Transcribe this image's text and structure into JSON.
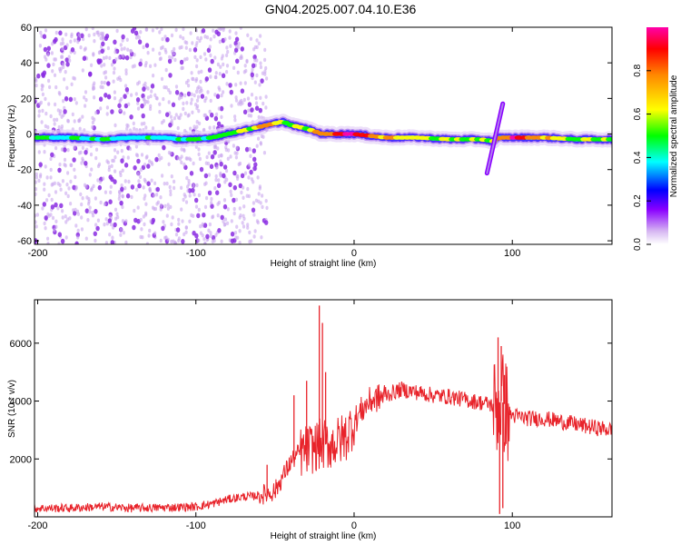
{
  "figure_title": "GN04.2025.007.04.10.E36",
  "chart_data": [
    {
      "type": "heatmap",
      "title": "",
      "xlabel": "Height of straight line (km)",
      "ylabel": "Frequency (Hz)",
      "xlim": [
        -202,
        163
      ],
      "ylim": [
        -62,
        60
      ],
      "xticks": [
        -200,
        -100,
        0,
        100
      ],
      "yticks": [
        -60,
        -40,
        -20,
        0,
        20,
        40,
        60
      ],
      "colorbar": {
        "label": "Normalized spectral amplitude",
        "range": [
          0,
          1
        ],
        "ticks": [
          0.0,
          0.2,
          0.4,
          0.6,
          0.8
        ],
        "colormap": [
          "#ffffff",
          "#d7b8f2",
          "#8a00ff",
          "#0000ff",
          "#00ffff",
          "#00ff00",
          "#ffff00",
          "#ff8800",
          "#ff0000",
          "#ff00aa"
        ]
      },
      "ridge": {
        "x": [
          -202,
          -180,
          -160,
          -140,
          -120,
          -110,
          -100,
          -90,
          -80,
          -70,
          -60,
          -50,
          -45,
          -40,
          -30,
          -20,
          -10,
          0,
          10,
          20,
          40,
          60,
          80,
          88,
          92,
          100,
          120,
          140,
          163
        ],
        "y": [
          -2,
          -2,
          -3,
          -2,
          -2,
          -3,
          -3,
          -2,
          0,
          2,
          4,
          6,
          7,
          5,
          3,
          0,
          0,
          0,
          -1,
          -2,
          -2,
          -3,
          -3,
          -4,
          -2,
          -2,
          -2,
          -3,
          -3
        ],
        "amplitude": [
          0.35,
          0.4,
          0.4,
          0.35,
          0.3,
          0.35,
          0.4,
          0.45,
          0.5,
          0.55,
          0.6,
          0.6,
          0.55,
          0.5,
          0.55,
          0.7,
          0.85,
          0.9,
          0.7,
          0.6,
          0.55,
          0.55,
          0.5,
          0.5,
          0.6,
          0.9,
          0.6,
          0.5,
          0.45
        ]
      },
      "chirp": {
        "x": [
          84,
          94
        ],
        "y": [
          -22,
          17
        ]
      },
      "noise_band_x": [
        -202,
        -55
      ]
    },
    {
      "type": "line",
      "title": "",
      "xlabel": "Height of straight line (km)",
      "ylabel": "SNR (10 * v/v)",
      "xlim": [
        -202,
        163
      ],
      "ylim": [
        0,
        7500
      ],
      "xticks": [
        -200,
        -100,
        0,
        100
      ],
      "yticks": [
        2000,
        4000,
        6000
      ],
      "series": [
        {
          "color": "#e8232a",
          "x": [
            -202,
            -180,
            -160,
            -140,
            -120,
            -100,
            -90,
            -80,
            -70,
            -65,
            -60,
            -55,
            -50,
            -40,
            -35,
            -30,
            -25,
            -22,
            -20,
            -15,
            -10,
            -5,
            0,
            5,
            10,
            20,
            30,
            40,
            50,
            60,
            70,
            80,
            85,
            90,
            93,
            95,
            97,
            100,
            110,
            120,
            130,
            140,
            150,
            163
          ],
          "y": [
            300,
            300,
            350,
            300,
            320,
            350,
            450,
            600,
            700,
            700,
            750,
            800,
            900,
            1900,
            2200,
            2300,
            2400,
            2500,
            2500,
            2500,
            2600,
            2800,
            3300,
            3700,
            4000,
            4200,
            4400,
            4300,
            4200,
            4150,
            4050,
            3950,
            3900,
            3800,
            4000,
            3900,
            3600,
            3500,
            3400,
            3400,
            3300,
            3200,
            3100,
            3000
          ]
        }
      ],
      "spikes": {
        "x": [
          -55,
          -38,
          -30,
          -22,
          -20,
          -18,
          91,
          92,
          93,
          94,
          95
        ],
        "y": [
          1800,
          4200,
          4700,
          7300,
          6700,
          5000,
          6200,
          100,
          5900,
          300,
          4900
        ]
      }
    }
  ]
}
